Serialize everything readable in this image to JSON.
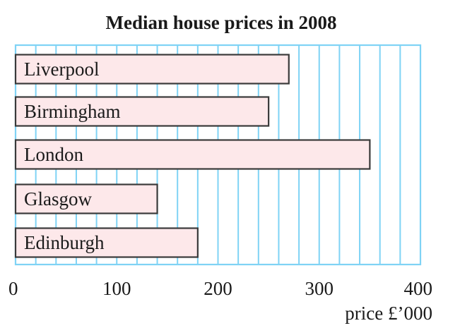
{
  "chart_data": {
    "type": "bar",
    "orientation": "horizontal",
    "title": "Median house prices in 2008",
    "xlabel": "price £’000",
    "ylabel": "",
    "categories": [
      "Liverpool",
      "Birmingham",
      "London",
      "Glasgow",
      "Edinburgh"
    ],
    "values": [
      270,
      250,
      350,
      140,
      180
    ],
    "xlim": [
      0,
      400
    ],
    "x_ticks": [
      0,
      100,
      200,
      300,
      400
    ],
    "x_tick_labels": [
      "0",
      "100",
      "200",
      "300",
      "400"
    ],
    "minor_grid_step": 20,
    "grid": true,
    "legend": "none",
    "labels_inside_bars": true,
    "colors": {
      "bar_fill": "#fde8ea",
      "bar_stroke": "#3a3a3a",
      "grid": "#7fd3f5",
      "text": "#1a1a1a"
    }
  }
}
